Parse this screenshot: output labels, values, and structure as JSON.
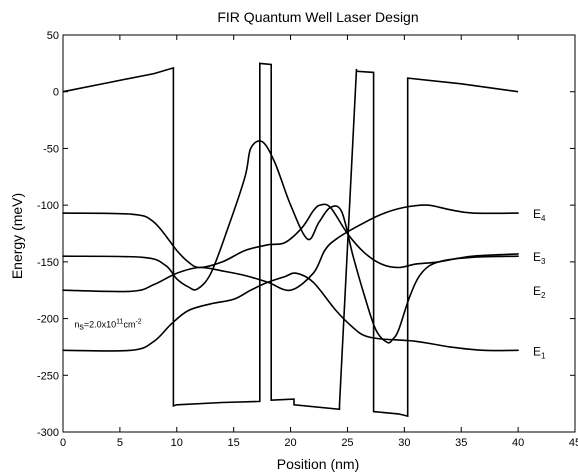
{
  "chart_data": {
    "type": "line",
    "title": "FIR Quantum Well Laser Design",
    "xlabel": "Position (nm)",
    "ylabel": "Energy (meV)",
    "xlim": [
      0,
      45
    ],
    "ylim": [
      -300,
      50
    ],
    "xticks": [
      0,
      5,
      10,
      15,
      20,
      25,
      30,
      35,
      40,
      45
    ],
    "yticks": [
      50,
      0,
      -50,
      -100,
      -150,
      -200,
      -250,
      -300
    ],
    "grid": false,
    "conduction_band": {
      "x": [
        0,
        4,
        8,
        9.7,
        9.7,
        10,
        14,
        17.3,
        17.3,
        18.3,
        18.3,
        20.3,
        20.3,
        24.3,
        24.3,
        25.8,
        25.8,
        27.3,
        27.3,
        29.5,
        30.3,
        30.3,
        35,
        40
      ],
      "y": [
        0,
        8,
        16,
        21,
        -277,
        -276,
        -274,
        -273,
        25,
        24,
        -272,
        -271,
        -276,
        -280,
        -276,
        20,
        18,
        17,
        -282,
        -284,
        -286,
        12,
        7,
        0
      ]
    },
    "series": [
      {
        "x": [
          0,
          7,
          9,
          10,
          11,
          11.8,
          13,
          14.5,
          16,
          16.5,
          17.5,
          18.6,
          20,
          21.5,
          22.5,
          23.5,
          24.5,
          25.5,
          26.5,
          27.5,
          28.5,
          29,
          29.5,
          30.5,
          31.5,
          33,
          36,
          40
        ],
        "y": [
          -145,
          -146,
          -153,
          -165,
          -172,
          -174,
          -160,
          -120,
          -75,
          -50,
          -44,
          -62,
          -100,
          -130,
          -115,
          -102,
          -106,
          -145,
          -180,
          -210,
          -221,
          -218,
          -210,
          -180,
          -160,
          -150,
          -146,
          -145
        ]
      },
      {
        "x": [
          0,
          6,
          8,
          10,
          11,
          12,
          14,
          16,
          18,
          19.5,
          21,
          22,
          22.6,
          23.5,
          25,
          26.5,
          28,
          29.5,
          31,
          33,
          36,
          40
        ],
        "y": [
          -107,
          -108,
          -115,
          -140,
          -150,
          -155,
          -150,
          -140,
          -135,
          -133,
          -120,
          -105,
          -100,
          -102,
          -125,
          -142,
          -152,
          -155,
          -152,
          -150,
          -145,
          -143
        ]
      },
      {
        "x": [
          0,
          6,
          8,
          10,
          12,
          14,
          16,
          18,
          20,
          22,
          23,
          24,
          26,
          28,
          30,
          32,
          34,
          36,
          40
        ],
        "y": [
          -175,
          -176,
          -170,
          -160,
          -155,
          -158,
          -162,
          -168,
          -175,
          -160,
          -140,
          -130,
          -118,
          -108,
          -102,
          -100,
          -104,
          -107,
          -107
        ]
      },
      {
        "x": [
          0,
          6,
          8,
          9.5,
          11,
          13,
          15,
          16.5,
          18,
          19.5,
          20.5,
          22,
          24,
          25.5,
          26.5,
          28,
          31,
          34,
          37,
          40
        ],
        "y": [
          -228,
          -228,
          -220,
          -205,
          -193,
          -187,
          -183,
          -175,
          -168,
          -163,
          -160,
          -168,
          -193,
          -208,
          -215,
          -218,
          -220,
          -225,
          -228,
          -228
        ]
      }
    ],
    "level_labels": [
      {
        "letter": "E",
        "sub": "4",
        "y": -107
      },
      {
        "letter": "E",
        "sub": "3",
        "y": -145
      },
      {
        "letter": "E",
        "sub": "2",
        "y": -175
      },
      {
        "letter": "E",
        "sub": "1",
        "y": -228
      }
    ],
    "annotation": {
      "text_main": "n",
      "text_sub": "s",
      "text_rest": "=2.0x10",
      "text_sup": "11",
      "text_unit": "cm",
      "text_unit_sup": "-2",
      "x": 1,
      "y": -208
    }
  }
}
